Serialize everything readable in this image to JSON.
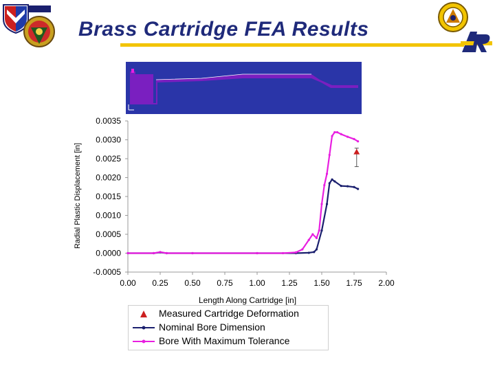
{
  "header": {
    "title": "Brass Cartridge FEA Results",
    "logos": [
      "army-command-shield-icon",
      "army-unit-crest-icon",
      "ordnance-seal-icon",
      "arl-logo-icon"
    ],
    "logo_text": "ARL",
    "accent_color": "#f2c400",
    "title_color": "#1f2a7a"
  },
  "fea_image": {
    "description_icon": "fea-contour-plot-icon",
    "background": "#2a35a8",
    "part_color": "#7a1fc0"
  },
  "chart_data": {
    "type": "line",
    "xlabel": "Length Along Cartridge [in]",
    "ylabel": "Radial Plastic Displacement [in]",
    "xlim": [
      0.0,
      2.0
    ],
    "ylim": [
      -0.0005,
      0.0035
    ],
    "xticks": [
      "0.00",
      "0.25",
      "0.50",
      "0.75",
      "1.00",
      "1.25",
      "1.50",
      "1.75",
      "2.00"
    ],
    "yticks": [
      "-0.0005",
      "0.0000",
      "0.0005",
      "0.0010",
      "0.0015",
      "0.0020",
      "0.0025",
      "0.0030",
      "0.0035"
    ],
    "grid": false,
    "legend_position": "bottom",
    "series": [
      {
        "name": "Measured Cartridge Deformation",
        "kind": "marker",
        "color": "#cc1f1f",
        "points": [
          {
            "x": 1.77,
            "y": 0.00267,
            "err_low": 0.00229,
            "err_high": 0.00278
          }
        ]
      },
      {
        "name": "Nominal Bore Dimension",
        "kind": "line",
        "color": "#1a1f6e",
        "x": [
          0.0,
          0.2,
          0.25,
          0.3,
          0.5,
          1.0,
          1.3,
          1.4,
          1.44,
          1.46,
          1.5,
          1.54,
          1.56,
          1.58,
          1.6,
          1.65,
          1.7,
          1.75,
          1.78
        ],
        "y": [
          0.0,
          0.0,
          2e-05,
          0.0,
          0.0,
          0.0,
          0.0,
          1e-05,
          3e-05,
          0.0001,
          0.0006,
          0.0013,
          0.00185,
          0.00195,
          0.0019,
          0.00178,
          0.00177,
          0.00175,
          0.0017
        ]
      },
      {
        "name": "Bore With Maximum Tolerance",
        "kind": "line",
        "color": "#e81ee0",
        "x": [
          0.0,
          0.2,
          0.25,
          0.3,
          0.5,
          1.0,
          1.2,
          1.3,
          1.35,
          1.4,
          1.43,
          1.46,
          1.48,
          1.5,
          1.52,
          1.54,
          1.56,
          1.58,
          1.6,
          1.62,
          1.65,
          1.7,
          1.75,
          1.78
        ],
        "y": [
          0.0,
          0.0,
          3e-05,
          0.0,
          0.0,
          0.0,
          0.0,
          2e-05,
          0.0001,
          0.00035,
          0.0005,
          0.0004,
          0.0006,
          0.0013,
          0.0018,
          0.0021,
          0.0026,
          0.0031,
          0.0032,
          0.0032,
          0.00315,
          0.00308,
          0.00302,
          0.00296
        ]
      }
    ]
  }
}
